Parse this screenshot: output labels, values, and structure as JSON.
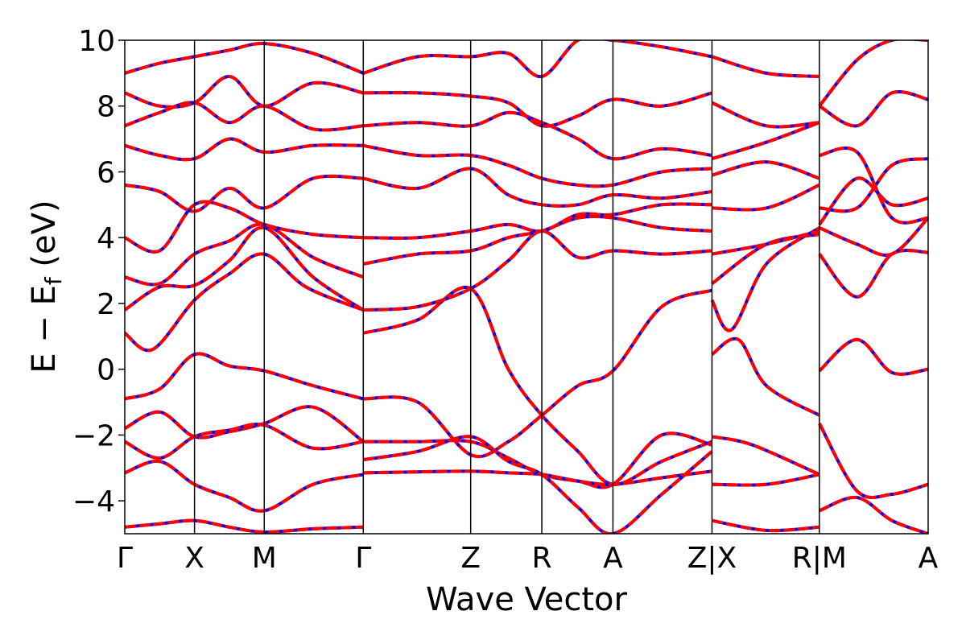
{
  "chart_data": {
    "type": "line",
    "xlabel": "Wave Vector",
    "ylabel_parts": {
      "main": "E − E",
      "sub": "f",
      "unit": " (eV)"
    },
    "ylim": [
      -5,
      10
    ],
    "yticks": [
      -4,
      -2,
      0,
      2,
      4,
      6,
      8,
      10
    ],
    "ytick_labels": [
      "−4",
      "−2",
      "0",
      "2",
      "4",
      "6",
      "8",
      "10"
    ],
    "k_points": [
      {
        "label": "Γ",
        "k": 0.0
      },
      {
        "label": "X",
        "k": 0.5
      },
      {
        "label": "M",
        "k": 1.0
      },
      {
        "label": "Γ",
        "k": 1.71
      },
      {
        "label": "Z",
        "k": 2.48
      },
      {
        "label": "R",
        "k": 2.99
      },
      {
        "label": "A",
        "k": 3.5
      },
      {
        "label": "Z|X",
        "k": 4.21
      },
      {
        "label": "R|M",
        "k": 4.98
      },
      {
        "label": "A",
        "k": 5.76
      }
    ],
    "xlim": [
      0,
      5.76
    ],
    "colors": {
      "band_solid": "#0000ff",
      "band_dashed": "#ff0000",
      "axes": "#000000"
    },
    "bands": [
      {
        "segment": "Γ-X-M-Γ",
        "x": [
          0.0,
          0.25,
          0.5,
          0.75,
          1.0,
          1.35,
          1.71
        ],
        "y": [
          -0.9,
          -0.6,
          0.45,
          0.1,
          -0.05,
          -0.5,
          -0.9
        ]
      },
      {
        "segment": "Γ-X-M-Γ",
        "x": [
          0.0,
          0.25,
          0.5,
          0.75,
          1.0,
          1.35,
          1.71
        ],
        "y": [
          -1.8,
          -1.3,
          -2.05,
          -1.9,
          -1.65,
          -1.15,
          -2.2
        ]
      },
      {
        "segment": "Γ-X-M-Γ",
        "x": [
          0.0,
          0.25,
          0.5,
          0.75,
          1.0,
          1.35,
          1.71
        ],
        "y": [
          -2.2,
          -2.7,
          -2.05,
          -1.85,
          -1.7,
          -2.4,
          -2.2
        ]
      },
      {
        "segment": "Γ-X-M-Γ",
        "x": [
          0.0,
          0.25,
          0.5,
          0.75,
          1.0,
          1.35,
          1.71
        ],
        "y": [
          -3.15,
          -2.8,
          -3.5,
          -3.9,
          -4.3,
          -3.5,
          -3.2
        ]
      },
      {
        "segment": "Γ-X-M-Γ",
        "x": [
          0.0,
          0.25,
          0.5,
          0.75,
          1.0,
          1.35,
          1.71
        ],
        "y": [
          -4.8,
          -4.7,
          -4.6,
          -4.8,
          -4.95,
          -4.85,
          -4.8
        ]
      },
      {
        "segment": "Γ-X-M-Γ",
        "x": [
          0.0,
          0.2,
          0.5,
          0.75,
          1.0,
          1.3,
          1.71
        ],
        "y": [
          1.1,
          0.6,
          2.1,
          2.9,
          3.5,
          2.5,
          1.8
        ]
      },
      {
        "segment": "Γ-X-M-Γ",
        "x": [
          0.0,
          0.25,
          0.5,
          0.75,
          1.0,
          1.35,
          1.71
        ],
        "y": [
          1.8,
          2.5,
          2.55,
          3.3,
          4.3,
          2.8,
          1.8
        ]
      },
      {
        "segment": "Γ-X-M-Γ",
        "x": [
          0.0,
          0.25,
          0.5,
          0.75,
          1.0,
          1.35,
          1.71
        ],
        "y": [
          2.8,
          2.6,
          3.5,
          3.9,
          4.4,
          3.4,
          2.8
        ]
      },
      {
        "segment": "Γ-X-M-Γ",
        "x": [
          0.0,
          0.25,
          0.5,
          0.75,
          1.0,
          1.35,
          1.71
        ],
        "y": [
          4.0,
          3.6,
          5.0,
          4.9,
          4.4,
          4.1,
          4.0
        ]
      },
      {
        "segment": "Γ-X-M-Γ",
        "x": [
          0.0,
          0.25,
          0.5,
          0.75,
          1.0,
          1.35,
          1.71
        ],
        "y": [
          5.6,
          5.4,
          4.8,
          5.5,
          4.9,
          5.8,
          5.8
        ]
      },
      {
        "segment": "Γ-X-M-Γ",
        "x": [
          0.0,
          0.25,
          0.5,
          0.75,
          1.0,
          1.35,
          1.71
        ],
        "y": [
          6.8,
          6.5,
          6.4,
          7.0,
          6.6,
          6.8,
          6.8
        ]
      },
      {
        "segment": "Γ-X-M-Γ",
        "x": [
          0.0,
          0.25,
          0.5,
          0.75,
          1.0,
          1.35,
          1.71
        ],
        "y": [
          7.4,
          7.8,
          8.1,
          7.5,
          8.0,
          7.3,
          7.4
        ]
      },
      {
        "segment": "Γ-X-M-Γ",
        "x": [
          0.0,
          0.25,
          0.5,
          0.75,
          1.0,
          1.35,
          1.71
        ],
        "y": [
          8.4,
          8.0,
          8.1,
          8.9,
          8.0,
          8.7,
          8.4
        ]
      },
      {
        "segment": "Γ-X-M-Γ",
        "x": [
          0.0,
          0.25,
          0.5,
          0.75,
          1.0,
          1.35,
          1.71
        ],
        "y": [
          9.0,
          9.3,
          9.5,
          9.7,
          9.9,
          9.6,
          9.0
        ]
      },
      {
        "segment": "Γ-Z-R-A-Z",
        "x": [
          1.71,
          2.1,
          2.48,
          2.75,
          2.99,
          3.25,
          3.5,
          3.85,
          4.21
        ],
        "y": [
          -0.9,
          -1.0,
          -2.6,
          -2.2,
          -1.4,
          -0.5,
          -0.05,
          1.9,
          2.4
        ]
      },
      {
        "segment": "Γ-Z-R-A-Z",
        "x": [
          1.71,
          2.1,
          2.48,
          2.75,
          2.99,
          3.25,
          3.5,
          3.85,
          4.21
        ],
        "y": [
          1.1,
          1.5,
          2.45,
          0.0,
          -1.4,
          -2.5,
          -3.5,
          -2.8,
          -2.2
        ]
      },
      {
        "segment": "Γ-Z-R-A-Z",
        "x": [
          1.71,
          2.1,
          2.48,
          2.75,
          2.99,
          3.25,
          3.5,
          3.85,
          4.21
        ],
        "y": [
          -2.2,
          -2.2,
          -2.2,
          -2.7,
          -3.2,
          -3.4,
          -3.5,
          -2.0,
          -2.3
        ]
      },
      {
        "segment": "Γ-Z-R-A-Z",
        "x": [
          1.71,
          2.1,
          2.48,
          2.75,
          2.99,
          3.25,
          3.5,
          3.85,
          4.21
        ],
        "y": [
          -3.15,
          -3.12,
          -3.1,
          -3.15,
          -3.2,
          -3.4,
          -3.5,
          -3.3,
          -3.1
        ]
      },
      {
        "segment": "Γ-Z-R-A-Z",
        "x": [
          1.71,
          2.1,
          2.48,
          2.75,
          2.99,
          3.25,
          3.5,
          3.85,
          4.21
        ],
        "y": [
          -2.75,
          -2.5,
          -2.05,
          -2.8,
          -3.2,
          -4.2,
          -5.0,
          -3.8,
          -2.5
        ]
      },
      {
        "segment": "Γ-Z-R-A-Z",
        "x": [
          1.71,
          2.1,
          2.48,
          2.75,
          2.99,
          3.25,
          3.5,
          3.85,
          4.21
        ],
        "y": [
          1.8,
          1.9,
          2.45,
          3.3,
          4.2,
          3.4,
          3.6,
          3.5,
          3.6
        ]
      },
      {
        "segment": "Γ-Z-R-A-Z",
        "x": [
          1.71,
          2.1,
          2.48,
          2.75,
          2.99,
          3.25,
          3.5,
          3.85,
          4.21
        ],
        "y": [
          3.2,
          3.5,
          3.6,
          4.0,
          4.2,
          4.6,
          4.6,
          4.3,
          4.2
        ]
      },
      {
        "segment": "Γ-Z-R-A-Z",
        "x": [
          1.71,
          2.1,
          2.48,
          2.75,
          2.99,
          3.25,
          3.5,
          3.85,
          4.21
        ],
        "y": [
          4.0,
          4.0,
          4.2,
          4.4,
          4.2,
          4.7,
          4.7,
          5.0,
          5.0
        ]
      },
      {
        "segment": "Γ-Z-R-A-Z",
        "x": [
          1.71,
          2.1,
          2.48,
          2.75,
          2.99,
          3.25,
          3.5,
          3.85,
          4.21
        ],
        "y": [
          5.8,
          5.5,
          6.1,
          5.3,
          5.0,
          5.0,
          5.3,
          5.2,
          5.4
        ]
      },
      {
        "segment": "Γ-Z-R-A-Z",
        "x": [
          1.71,
          2.1,
          2.48,
          2.75,
          2.99,
          3.25,
          3.5,
          3.85,
          4.21
        ],
        "y": [
          6.8,
          6.5,
          6.5,
          6.2,
          5.8,
          5.6,
          5.6,
          6.0,
          6.1
        ]
      },
      {
        "segment": "Γ-Z-R-A-Z",
        "x": [
          1.71,
          2.1,
          2.48,
          2.75,
          2.99,
          3.25,
          3.5,
          3.85,
          4.21
        ],
        "y": [
          7.4,
          7.5,
          7.4,
          7.8,
          7.5,
          7.0,
          6.4,
          6.7,
          6.5
        ]
      },
      {
        "segment": "Γ-Z-R-A-Z",
        "x": [
          1.71,
          2.1,
          2.48,
          2.75,
          2.99,
          3.25,
          3.5,
          3.85,
          4.21
        ],
        "y": [
          8.4,
          8.4,
          8.3,
          8.1,
          7.4,
          7.7,
          8.2,
          8.0,
          8.4
        ]
      },
      {
        "segment": "Γ-Z-R-A-Z",
        "x": [
          1.71,
          2.1,
          2.48,
          2.75,
          2.99,
          3.25,
          3.5,
          3.85,
          4.21
        ],
        "y": [
          9.0,
          9.5,
          9.5,
          9.6,
          8.9,
          10.0,
          10.0,
          9.8,
          9.5
        ]
      },
      {
        "segment": "X-R",
        "x": [
          4.21,
          4.4,
          4.6,
          4.98
        ],
        "y": [
          0.45,
          0.9,
          -0.5,
          -1.4
        ]
      },
      {
        "segment": "X-R",
        "x": [
          4.21,
          4.35,
          4.6,
          4.98
        ],
        "y": [
          2.1,
          1.2,
          3.2,
          4.3
        ]
      },
      {
        "segment": "X-R",
        "x": [
          4.21,
          4.5,
          4.98
        ],
        "y": [
          -2.05,
          -2.3,
          -3.2
        ]
      },
      {
        "segment": "X-R",
        "x": [
          4.21,
          4.6,
          4.98
        ],
        "y": [
          -3.5,
          -3.5,
          -3.2
        ]
      },
      {
        "segment": "X-R",
        "x": [
          4.21,
          4.6,
          4.98
        ],
        "y": [
          -4.6,
          -4.9,
          -4.8
        ]
      },
      {
        "segment": "X-R",
        "x": [
          4.21,
          4.6,
          4.98
        ],
        "y": [
          2.6,
          3.8,
          4.1
        ]
      },
      {
        "segment": "X-R",
        "x": [
          4.21,
          4.6,
          4.98
        ],
        "y": [
          3.5,
          3.8,
          4.2
        ]
      },
      {
        "segment": "X-R",
        "x": [
          4.21,
          4.6,
          4.98
        ],
        "y": [
          4.9,
          4.9,
          5.6
        ]
      },
      {
        "segment": "X-R",
        "x": [
          4.21,
          4.6,
          4.98
        ],
        "y": [
          5.9,
          6.3,
          5.8
        ]
      },
      {
        "segment": "X-R",
        "x": [
          4.21,
          4.6,
          4.98
        ],
        "y": [
          6.4,
          6.9,
          7.5
        ]
      },
      {
        "segment": "X-R",
        "x": [
          4.21,
          4.6,
          4.98
        ],
        "y": [
          8.1,
          7.4,
          7.5
        ]
      },
      {
        "segment": "X-R",
        "x": [
          4.21,
          4.6,
          4.98
        ],
        "y": [
          9.5,
          9.0,
          8.9
        ]
      },
      {
        "segment": "M-A",
        "x": [
          4.98,
          5.25,
          5.5,
          5.76
        ],
        "y": [
          -0.05,
          0.9,
          -0.1,
          0.0
        ]
      },
      {
        "segment": "M-A",
        "x": [
          4.98,
          5.25,
          5.5,
          5.76
        ],
        "y": [
          -1.65,
          -3.7,
          -3.8,
          -3.5
        ]
      },
      {
        "segment": "M-A",
        "x": [
          4.98,
          5.25,
          5.5,
          5.76
        ],
        "y": [
          -4.3,
          -3.9,
          -4.6,
          -5.0
        ]
      },
      {
        "segment": "M-A",
        "x": [
          4.98,
          5.25,
          5.5,
          5.76
        ],
        "y": [
          3.5,
          2.2,
          3.5,
          3.55
        ]
      },
      {
        "segment": "M-A",
        "x": [
          4.98,
          5.25,
          5.5,
          5.76
        ],
        "y": [
          4.3,
          3.8,
          3.5,
          4.6
        ]
      },
      {
        "segment": "M-A",
        "x": [
          4.98,
          5.25,
          5.5,
          5.76
        ],
        "y": [
          4.4,
          5.8,
          5.0,
          5.2
        ]
      },
      {
        "segment": "M-A",
        "x": [
          4.98,
          5.25,
          5.5,
          5.76
        ],
        "y": [
          4.9,
          4.9,
          6.2,
          6.4
        ]
      },
      {
        "segment": "M-A",
        "x": [
          4.98,
          5.25,
          5.5,
          5.76
        ],
        "y": [
          6.5,
          6.6,
          4.6,
          4.6
        ]
      },
      {
        "segment": "M-A",
        "x": [
          4.98,
          5.25,
          5.5,
          5.76
        ],
        "y": [
          8.0,
          7.4,
          8.4,
          8.2
        ]
      },
      {
        "segment": "M-A",
        "x": [
          4.98,
          5.25,
          5.5,
          5.76
        ],
        "y": [
          8.0,
          9.4,
          10.0,
          10.0
        ]
      }
    ]
  }
}
